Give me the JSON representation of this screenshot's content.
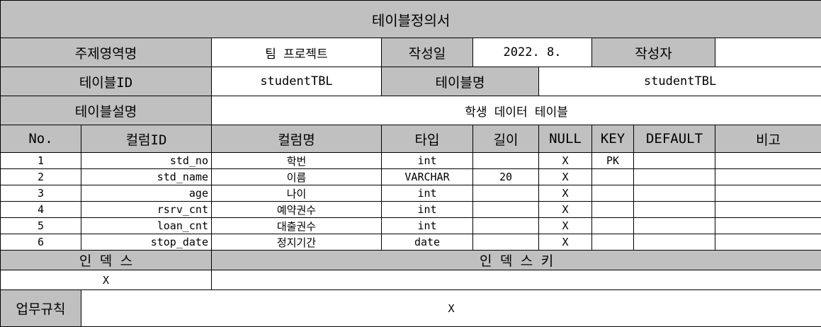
{
  "title": "테이블정의서",
  "meta": {
    "subject_label": "주제영역명",
    "subject_value": "팀 프로젝트",
    "date_label": "작성일",
    "date_value": "2022. 8.",
    "author_label": "작성자",
    "author_value": "",
    "table_id_label": "테이블ID",
    "table_id_value": "studentTBL",
    "table_name_label": "테이블명",
    "table_name_value": "studentTBL",
    "table_desc_label": "테이블설명",
    "table_desc_value": "학생 데이터 테이블"
  },
  "columns_header": {
    "no": "No.",
    "col_id": "컬럼ID",
    "col_name": "컬럼명",
    "type": "타입",
    "length": "길이",
    "null": "NULL",
    "key": "KEY",
    "default": "DEFAULT",
    "note": "비고"
  },
  "rows": [
    {
      "no": "1",
      "col_id": "std_no",
      "col_name": "학번",
      "type": "int",
      "length": "",
      "null": "X",
      "key": "PK",
      "default": "",
      "note": ""
    },
    {
      "no": "2",
      "col_id": "std_name",
      "col_name": "이름",
      "type": "VARCHAR",
      "length": "20",
      "null": "X",
      "key": "",
      "default": "",
      "note": ""
    },
    {
      "no": "3",
      "col_id": "age",
      "col_name": "나이",
      "type": "int",
      "length": "",
      "null": "X",
      "key": "",
      "default": "",
      "note": ""
    },
    {
      "no": "4",
      "col_id": "rsrv_cnt",
      "col_name": "예약권수",
      "type": "int",
      "length": "",
      "null": "X",
      "key": "",
      "default": "",
      "note": ""
    },
    {
      "no": "5",
      "col_id": "loan_cnt",
      "col_name": "대출권수",
      "type": "int",
      "length": "",
      "null": "X",
      "key": "",
      "default": "",
      "note": ""
    },
    {
      "no": "6",
      "col_id": "stop_date",
      "col_name": "정지기간",
      "type": "date",
      "length": "",
      "null": "X",
      "key": "",
      "default": "",
      "note": ""
    }
  ],
  "index": {
    "index_label": "인 덱 스",
    "index_key_label": "인 덱 스 키",
    "index_value": "X",
    "index_key_value": ""
  },
  "business_rules": {
    "label": "업무규칙",
    "value": "X"
  }
}
